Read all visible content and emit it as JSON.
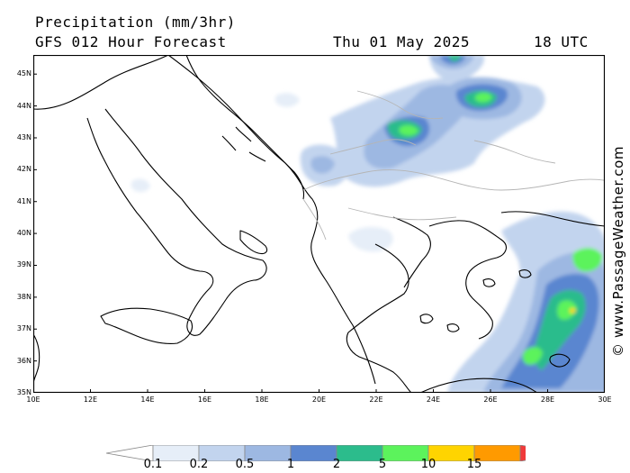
{
  "header": {
    "title": "Precipitation (mm/3hr)",
    "model": "GFS 012 Hour Forecast",
    "date": "Thu 01 May 2025",
    "time": "18 UTC"
  },
  "watermark": "© www.PassageWeather.com",
  "axes": {
    "lat_labels": [
      "45N",
      "44N",
      "43N",
      "42N",
      "41N",
      "40N",
      "39N",
      "38N",
      "37N",
      "36N",
      "35N"
    ],
    "lon_labels": [
      "10E",
      "12E",
      "14E",
      "16E",
      "18E",
      "20E",
      "22E",
      "24E",
      "26E",
      "28E",
      "30E"
    ],
    "lat_range": [
      35,
      45.6
    ],
    "lon_range": [
      10,
      30
    ]
  },
  "legend": {
    "ticks": [
      "0.1",
      "0.2",
      "0.5",
      "1",
      "2",
      "5",
      "10",
      "15"
    ],
    "colors": [
      "#ffffff",
      "#e6eef8",
      "#c2d4ee",
      "#9db8e2",
      "#5a86d0",
      "#2cbc8c",
      "#5cf35c",
      "#ffd400",
      "#ff9a00",
      "#f03a3a"
    ]
  },
  "map": {
    "land_color": "#ffffff",
    "coast_color": "#000000",
    "border_color": "#b5b5b5"
  }
}
